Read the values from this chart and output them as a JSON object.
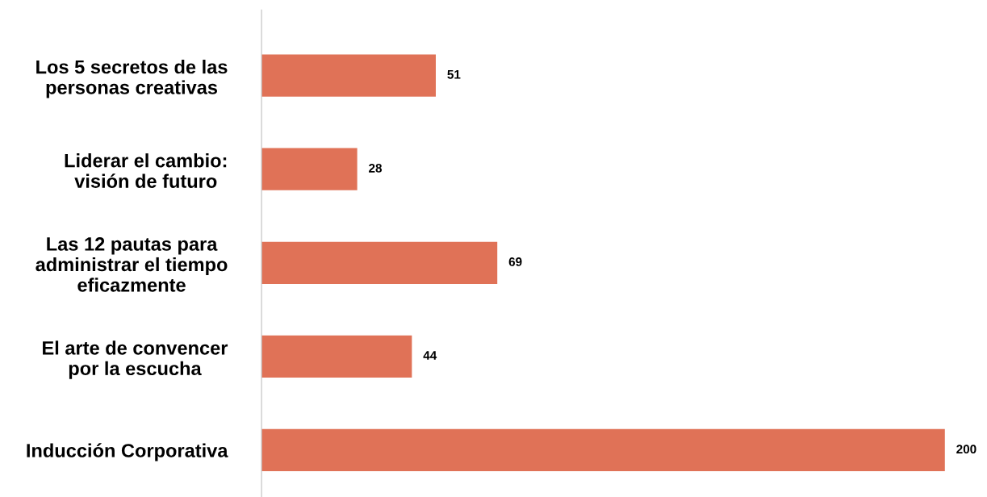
{
  "chart_data": {
    "type": "bar",
    "orientation": "horizontal",
    "categories": [
      "Los 5 secretos de las\npersonas creativas",
      "Liderar el cambio:\nvisión de futuro",
      "Las 12 pautas para\nadministrar el tiempo\neficazmente",
      "El arte de convencer\npor la escucha",
      "Inducción Corporativa"
    ],
    "values": [
      51,
      28,
      69,
      44,
      200
    ],
    "color": "#e07257",
    "data_labels": true,
    "grid": false,
    "legend": false
  }
}
